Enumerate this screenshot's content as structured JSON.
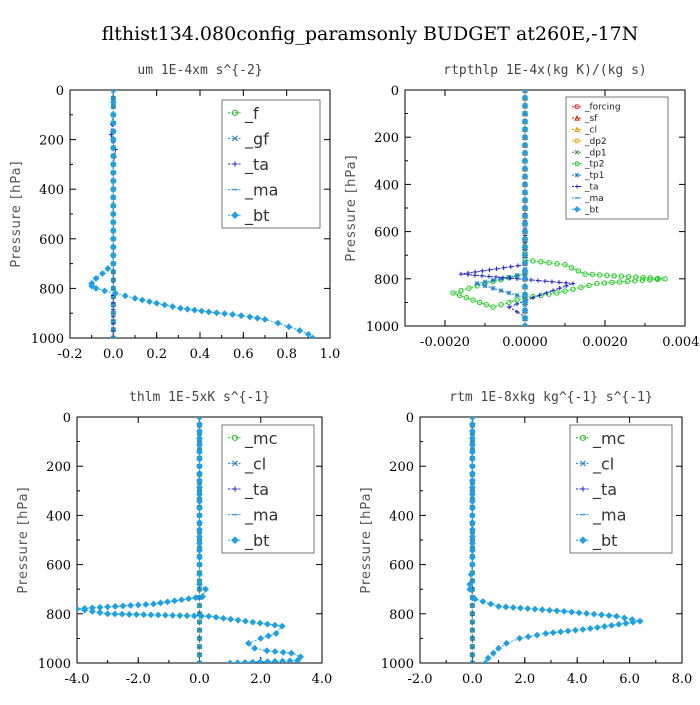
{
  "title": "flthist134.080config_paramsonly  BUDGET at260E,-17N",
  "chart_data": [
    {
      "type": "line",
      "title": "um  1E-4xm s^{-2}",
      "ylabel": "Pressure [hPa]",
      "xlim": [
        -0.2,
        1.0
      ],
      "ylim": [
        1000,
        0
      ],
      "xticks": [
        "-0.2",
        "0.0",
        "0.2",
        "0.4",
        "0.6",
        "0.8",
        "1.0"
      ],
      "yticks": [
        "0",
        "200",
        "400",
        "600",
        "800",
        "1000"
      ],
      "legend_position": "top-right",
      "legend_size": "large",
      "series": [
        {
          "name": "_f",
          "color": "#22bb22",
          "marker": "circle",
          "x": [
            0,
            0,
            0,
            0,
            0,
            0,
            0,
            0,
            0,
            0,
            0
          ],
          "y": [
            0,
            100,
            200,
            300,
            400,
            500,
            600,
            700,
            800,
            900,
            1000
          ]
        },
        {
          "name": "_gf",
          "color": "#1e7ec8",
          "marker": "cross",
          "x": [
            0,
            0,
            0,
            0,
            0,
            0,
            0,
            0,
            0,
            0,
            0
          ],
          "y": [
            0,
            100,
            200,
            300,
            400,
            500,
            600,
            700,
            800,
            900,
            1000
          ]
        },
        {
          "name": "_ta",
          "color": "#2222cc",
          "marker": "plus",
          "x": [
            0,
            0,
            -0.01,
            0.01,
            0,
            0,
            0,
            0,
            0,
            0,
            0
          ],
          "y": [
            0,
            100,
            180,
            240,
            300,
            400,
            500,
            600,
            700,
            800,
            1000
          ]
        },
        {
          "name": "_ma",
          "color": "#3399dd",
          "marker": "dash",
          "x": [
            0,
            0,
            0,
            0,
            0,
            0,
            0,
            0,
            0,
            0,
            0
          ],
          "y": [
            0,
            100,
            200,
            300,
            400,
            500,
            600,
            700,
            800,
            900,
            1000
          ]
        },
        {
          "name": "_bt",
          "color": "#1ea0e6",
          "marker": "diamond",
          "x": [
            0,
            0,
            0,
            0,
            0,
            0,
            0,
            0,
            0,
            -0.05,
            -0.08,
            -0.1,
            -0.1,
            -0.08,
            -0.04,
            0.01,
            0.1,
            0.2,
            0.31,
            0.44,
            0.55,
            0.63,
            0.7,
            0.76,
            0.81,
            0.86,
            0.9,
            0.92
          ],
          "y": [
            0,
            50,
            100,
            200,
            300,
            400,
            500,
            600,
            700,
            740,
            760,
            780,
            790,
            800,
            810,
            820,
            840,
            860,
            880,
            895,
            905,
            915,
            925,
            940,
            955,
            970,
            985,
            1000
          ]
        }
      ]
    },
    {
      "type": "line",
      "title": "rtpthlp  1E-4x(kg K)/(kg s)",
      "ylabel": "Pressure [hPa]",
      "xlim": [
        -0.003,
        0.004
      ],
      "ylim": [
        1000,
        0
      ],
      "xticks": [
        "-0.0020",
        "0.0000",
        "0.0020",
        "0.0040"
      ],
      "xtick_values": [
        -0.002,
        0.0,
        0.002,
        0.004
      ],
      "yticks": [
        "0",
        "200",
        "400",
        "600",
        "800",
        "1000"
      ],
      "legend_position": "top-right",
      "legend_size": "small",
      "series": [
        {
          "name": "_forcing",
          "color": "#dd2222",
          "marker": "circle",
          "x": [
            0,
            0,
            0,
            0,
            0,
            0,
            0,
            0,
            0,
            0,
            0
          ],
          "y": [
            0,
            100,
            200,
            300,
            400,
            500,
            600,
            700,
            800,
            900,
            1000
          ]
        },
        {
          "name": "_sf",
          "color": "#cc2200",
          "marker": "tri",
          "x": [
            0,
            0,
            0,
            0,
            0,
            0,
            0,
            0,
            0,
            0,
            0
          ],
          "y": [
            0,
            100,
            200,
            300,
            400,
            500,
            600,
            700,
            800,
            900,
            1000
          ]
        },
        {
          "name": "_cl",
          "color": "#ee9900",
          "marker": "tri",
          "x": [
            0,
            0,
            0,
            0,
            0,
            0,
            0,
            0,
            0,
            0,
            0
          ],
          "y": [
            0,
            100,
            200,
            300,
            400,
            500,
            600,
            700,
            800,
            900,
            1000
          ]
        },
        {
          "name": "_dp2",
          "color": "#ddaa00",
          "marker": "circle",
          "x": [
            0,
            0,
            0,
            0,
            0,
            0,
            0,
            0,
            0,
            0,
            0
          ],
          "y": [
            0,
            100,
            200,
            300,
            400,
            500,
            600,
            700,
            800,
            900,
            1000
          ]
        },
        {
          "name": "_dp1",
          "color": "#338833",
          "marker": "cross",
          "x": [
            0,
            0,
            0,
            0,
            0,
            0,
            0,
            0,
            0,
            0,
            0
          ],
          "y": [
            0,
            100,
            200,
            300,
            400,
            500,
            600,
            700,
            800,
            900,
            1000
          ]
        },
        {
          "name": "_tp2",
          "color": "#22cc22",
          "marker": "circle",
          "x": [
            0,
            0,
            0,
            0,
            0,
            0.001,
            0.0015,
            0.0035,
            0.0018,
            0.0008,
            0.0,
            -0.0004,
            -0.0008,
            -0.0018,
            -0.001,
            0.0
          ],
          "y": [
            0,
            200,
            400,
            600,
            720,
            740,
            780,
            800,
            820,
            860,
            880,
            900,
            920,
            860,
            820,
            780
          ]
        },
        {
          "name": "_tp1",
          "color": "#1e7ec8",
          "marker": "star",
          "x": [
            0,
            0,
            0,
            0,
            0,
            0,
            -0.0006,
            -0.0012,
            -0.0008,
            0,
            0
          ],
          "y": [
            0,
            200,
            400,
            600,
            760,
            780,
            800,
            820,
            840,
            880,
            1000
          ]
        },
        {
          "name": "_ta",
          "color": "#2222cc",
          "marker": "plus",
          "x": [
            0,
            0,
            0,
            0,
            -0.0016,
            0.0012,
            0.0002,
            -0.0004,
            0,
            0
          ],
          "y": [
            0,
            200,
            400,
            740,
            780,
            820,
            880,
            920,
            960,
            1000
          ]
        },
        {
          "name": "_ma",
          "color": "#3399dd",
          "marker": "dash",
          "x": [
            0,
            0,
            0,
            0,
            0,
            0,
            0,
            0,
            0,
            0,
            0
          ],
          "y": [
            0,
            100,
            200,
            300,
            400,
            500,
            600,
            700,
            800,
            900,
            1000
          ]
        },
        {
          "name": "_bt",
          "color": "#1ea0e6",
          "marker": "diamond",
          "x": [
            0,
            0,
            0,
            0,
            0,
            0,
            0,
            0,
            0,
            0,
            0
          ],
          "y": [
            0,
            100,
            200,
            300,
            400,
            500,
            600,
            700,
            800,
            900,
            1000
          ]
        }
      ]
    },
    {
      "type": "line",
      "title": "thlm  1E-5xK s^{-1}",
      "ylabel": "Pressure [hPa]",
      "xlim": [
        -4.0,
        4.0
      ],
      "ylim": [
        1000,
        0
      ],
      "xticks": [
        "-4.0",
        "-2.0",
        "0.0",
        "2.0",
        "4.0"
      ],
      "yticks": [
        "0",
        "200",
        "400",
        "600",
        "800",
        "1000"
      ],
      "legend_position": "top-right",
      "legend_size": "large",
      "series": [
        {
          "name": "_mc",
          "color": "#22bb22",
          "marker": "circle",
          "x": [
            0,
            0,
            0,
            0,
            0,
            0,
            0,
            0,
            0,
            0,
            0
          ],
          "y": [
            0,
            100,
            200,
            300,
            400,
            500,
            600,
            700,
            800,
            900,
            1000
          ]
        },
        {
          "name": "_cl",
          "color": "#1e7ec8",
          "marker": "cross",
          "x": [
            0,
            0,
            0,
            0,
            0,
            0,
            0,
            0,
            0,
            0,
            0
          ],
          "y": [
            0,
            100,
            200,
            300,
            400,
            500,
            600,
            700,
            800,
            900,
            1000
          ]
        },
        {
          "name": "_ta",
          "color": "#2222cc",
          "marker": "plus",
          "x": [
            0,
            0,
            0,
            0,
            0,
            0,
            0,
            0,
            0,
            0,
            0
          ],
          "y": [
            0,
            100,
            200,
            300,
            400,
            500,
            600,
            700,
            800,
            900,
            1000
          ]
        },
        {
          "name": "_ma",
          "color": "#3399dd",
          "marker": "dash",
          "x": [
            0,
            0,
            0,
            0,
            0,
            0,
            0,
            0,
            0,
            0,
            0
          ],
          "y": [
            0,
            100,
            200,
            300,
            400,
            500,
            600,
            700,
            800,
            900,
            1000
          ]
        },
        {
          "name": "_bt",
          "color": "#1ea0e6",
          "marker": "diamond",
          "x": [
            0,
            0,
            0,
            0,
            0,
            0.2,
            0.1,
            -1.5,
            -4.0,
            -3.0,
            0.3,
            1.5,
            2.7,
            2.5,
            2.0,
            1.6,
            1.8,
            2.2,
            3.0,
            3.3,
            3.2,
            1.0
          ],
          "y": [
            0,
            200,
            400,
            600,
            680,
            700,
            730,
            760,
            780,
            800,
            810,
            830,
            850,
            880,
            900,
            920,
            940,
            950,
            960,
            975,
            990,
            1000
          ]
        }
      ]
    },
    {
      "type": "line",
      "title": "rtm  1E-8xkg kg^{-1} s^{-1}",
      "ylabel": "Pressure [hPa]",
      "xlim": [
        -2.0,
        8.0
      ],
      "ylim": [
        1000,
        0
      ],
      "xticks": [
        "-2.0",
        "0.0",
        "2.0",
        "4.0",
        "6.0",
        "8.0"
      ],
      "yticks": [
        "0",
        "200",
        "400",
        "600",
        "800",
        "1000"
      ],
      "legend_position": "top-right",
      "legend_size": "large",
      "series": [
        {
          "name": "_mc",
          "color": "#22bb22",
          "marker": "circle",
          "x": [
            0,
            0,
            0,
            0,
            0,
            0,
            0,
            0,
            0,
            0,
            0
          ],
          "y": [
            0,
            100,
            200,
            300,
            400,
            500,
            600,
            700,
            800,
            900,
            1000
          ]
        },
        {
          "name": "_cl",
          "color": "#1e7ec8",
          "marker": "cross",
          "x": [
            0,
            0,
            0,
            0,
            0,
            0,
            0,
            0,
            0,
            0,
            0
          ],
          "y": [
            0,
            100,
            200,
            300,
            400,
            500,
            600,
            700,
            800,
            900,
            1000
          ]
        },
        {
          "name": "_ta",
          "color": "#2222cc",
          "marker": "plus",
          "x": [
            0,
            0,
            0,
            0,
            0,
            0,
            0,
            0,
            0,
            0,
            0
          ],
          "y": [
            0,
            100,
            200,
            300,
            400,
            500,
            600,
            700,
            800,
            900,
            1000
          ]
        },
        {
          "name": "_ma",
          "color": "#3399dd",
          "marker": "dash",
          "x": [
            0,
            0,
            0,
            0,
            0,
            0,
            0,
            0,
            0,
            0,
            0
          ],
          "y": [
            0,
            100,
            200,
            300,
            400,
            500,
            600,
            700,
            800,
            900,
            1000
          ]
        },
        {
          "name": "_bt",
          "color": "#1ea0e6",
          "marker": "diamond",
          "x": [
            0,
            0,
            0,
            0,
            -0.1,
            -0.1,
            0.1,
            1.0,
            3.5,
            5.5,
            6.4,
            4.5,
            2.8,
            1.8,
            1.3,
            1.0,
            0.8,
            0.6,
            0.5
          ],
          "y": [
            0,
            200,
            400,
            600,
            680,
            700,
            740,
            770,
            790,
            810,
            830,
            860,
            880,
            900,
            920,
            940,
            960,
            980,
            1000
          ]
        }
      ]
    }
  ]
}
